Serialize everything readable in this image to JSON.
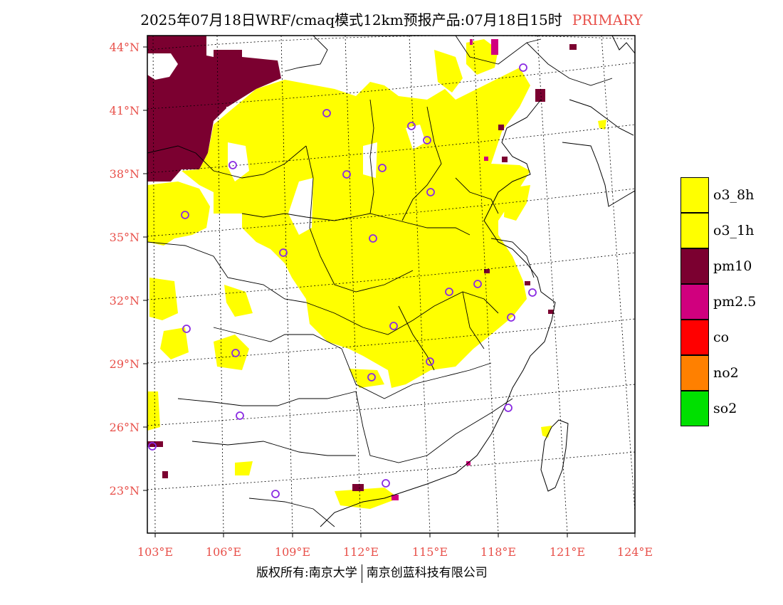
{
  "title": {
    "main": "2025年07月18日WRF/cmaq模式12km预报产品:07月18日15时",
    "tag": "PRIMARY"
  },
  "axes": {
    "lat_labels": [
      "44°N",
      "41°N",
      "38°N",
      "35°N",
      "32°N",
      "29°N",
      "26°N",
      "23°N"
    ],
    "lon_labels": [
      "103°E",
      "106°E",
      "109°E",
      "112°E",
      "115°E",
      "118°E",
      "121°E",
      "124°E"
    ]
  },
  "legend": [
    {
      "label": "o3_8h",
      "color": "#ffff00"
    },
    {
      "label": "o3_1h",
      "color": "#ffff00"
    },
    {
      "label": "pm10",
      "color": "#7b0030"
    },
    {
      "label": "pm2.5",
      "color": "#d0007e"
    },
    {
      "label": "co",
      "color": "#ff0000"
    },
    {
      "label": "no2",
      "color": "#ff8000"
    },
    {
      "label": "so2",
      "color": "#00e000"
    }
  ],
  "colors": {
    "o3": "#ffff00",
    "pm10": "#7b0030",
    "pm25": "#d0007e",
    "station": "#8a2be2",
    "axis_label": "#e8504a"
  },
  "footer": {
    "left": "版权所有:南京大学",
    "right": "南京创蓝科技有限公司"
  }
}
